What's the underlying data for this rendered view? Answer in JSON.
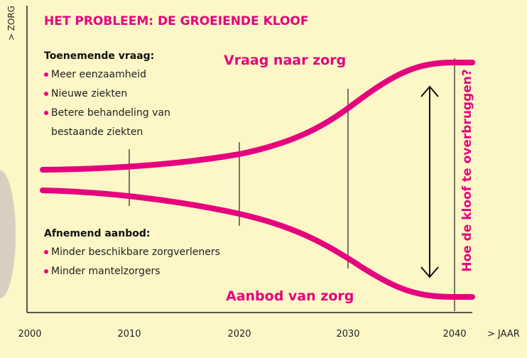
{
  "title": "HET PROBLEEM: DE GROEIENDE KLOOF",
  "y_axis_label": "> ZORG",
  "x_axis_label": "> JAAR",
  "x_ticks": [
    "2000",
    "2010",
    "2020",
    "2030",
    "2040"
  ],
  "demand": {
    "heading": "Toenemende vraag:",
    "items": [
      "Meer eenzaamheid",
      "Nieuwe ziekten",
      "Betere behandeling van bestaande ziekten"
    ],
    "curve_label": "Vraag naar zorg"
  },
  "supply": {
    "heading": "Afnemend aanbod:",
    "items": [
      "Minder beschikbare zorgverleners",
      "Minder mantelzorgers"
    ],
    "curve_label": "Aanbod van zorg"
  },
  "gap_question": "Hoe de kloof te overbruggen?"
}
